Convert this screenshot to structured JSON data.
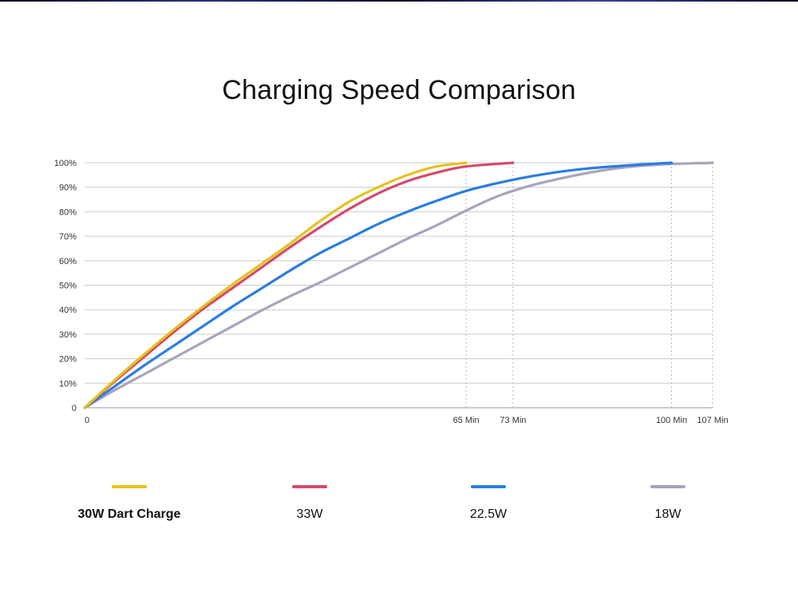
{
  "chart_data": {
    "type": "line",
    "title": "Charging Speed Comparison",
    "xlabel": "",
    "ylabel": "",
    "xlim": [
      0,
      107
    ],
    "ylim": [
      0,
      100
    ],
    "y_ticks": [
      {
        "value": 0,
        "label": "0"
      },
      {
        "value": 10,
        "label": "10%"
      },
      {
        "value": 20,
        "label": "20%"
      },
      {
        "value": 30,
        "label": "30%"
      },
      {
        "value": 40,
        "label": "40%"
      },
      {
        "value": 50,
        "label": "50%"
      },
      {
        "value": 60,
        "label": "60%"
      },
      {
        "value": 70,
        "label": "70%"
      },
      {
        "value": 80,
        "label": "80%"
      },
      {
        "value": 90,
        "label": "90%"
      },
      {
        "value": 100,
        "label": "100%"
      }
    ],
    "x_ticks": [
      {
        "value": 0,
        "label": "0"
      },
      {
        "value": 65,
        "label": "65 Min"
      },
      {
        "value": 73,
        "label": "73 Min"
      },
      {
        "value": 100,
        "label": "100 Min"
      },
      {
        "value": 107,
        "label": "107 Min"
      }
    ],
    "grid": true,
    "legend_position": "bottom",
    "series": [
      {
        "name": "30W Dart Charge",
        "color": "#e6c21c",
        "bold_label": true,
        "points": [
          [
            0,
            0
          ],
          [
            5,
            11
          ],
          [
            10,
            21.5
          ],
          [
            15,
            31.5
          ],
          [
            20,
            41
          ],
          [
            25,
            50
          ],
          [
            30,
            58.5
          ],
          [
            35,
            67
          ],
          [
            40,
            76
          ],
          [
            45,
            84
          ],
          [
            50,
            90
          ],
          [
            55,
            95
          ],
          [
            60,
            98.5
          ],
          [
            65,
            100
          ]
        ]
      },
      {
        "name": "33W",
        "color": "#d44a6c",
        "bold_label": false,
        "points": [
          [
            0,
            0
          ],
          [
            5,
            10.5
          ],
          [
            10,
            20.5
          ],
          [
            15,
            30.5
          ],
          [
            20,
            40
          ],
          [
            25,
            48.5
          ],
          [
            30,
            57
          ],
          [
            35,
            65.5
          ],
          [
            40,
            73.5
          ],
          [
            45,
            81
          ],
          [
            50,
            87.5
          ],
          [
            55,
            92.5
          ],
          [
            60,
            96
          ],
          [
            65,
            98.5
          ],
          [
            73,
            100
          ]
        ]
      },
      {
        "name": "22.5W",
        "color": "#2a7de1",
        "bold_label": false,
        "points": [
          [
            0,
            0
          ],
          [
            5,
            8.5
          ],
          [
            10,
            17
          ],
          [
            15,
            25
          ],
          [
            20,
            33
          ],
          [
            25,
            41
          ],
          [
            30,
            48.5
          ],
          [
            35,
            56
          ],
          [
            40,
            63
          ],
          [
            45,
            69
          ],
          [
            50,
            75
          ],
          [
            55,
            80
          ],
          [
            60,
            84.5
          ],
          [
            65,
            88.5
          ],
          [
            70,
            91.5
          ],
          [
            75,
            94
          ],
          [
            80,
            96
          ],
          [
            85,
            97.5
          ],
          [
            90,
            98.5
          ],
          [
            95,
            99.3
          ],
          [
            100,
            100
          ]
        ]
      },
      {
        "name": "18W",
        "color": "#a7a5ba",
        "bold_label": false,
        "points": [
          [
            0,
            0
          ],
          [
            5,
            7
          ],
          [
            10,
            13.5
          ],
          [
            15,
            20
          ],
          [
            20,
            26.5
          ],
          [
            25,
            33
          ],
          [
            30,
            39.5
          ],
          [
            35,
            45.5
          ],
          [
            40,
            51
          ],
          [
            45,
            57
          ],
          [
            50,
            63
          ],
          [
            55,
            69
          ],
          [
            60,
            74.5
          ],
          [
            65,
            80.5
          ],
          [
            70,
            86
          ],
          [
            75,
            90
          ],
          [
            80,
            93
          ],
          [
            85,
            95.5
          ],
          [
            90,
            97.5
          ],
          [
            95,
            98.8
          ],
          [
            100,
            99.5
          ],
          [
            107,
            100
          ]
        ]
      }
    ]
  }
}
